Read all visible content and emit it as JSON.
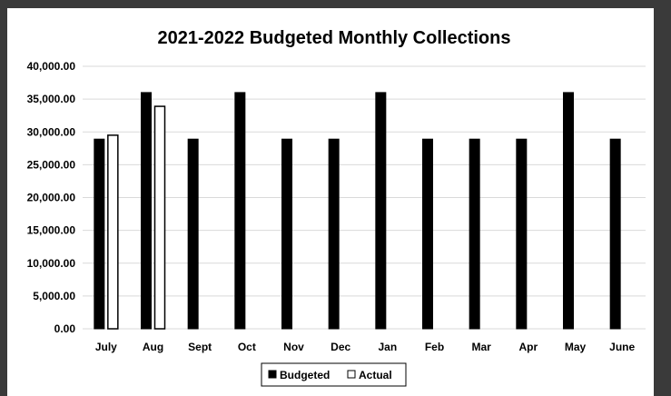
{
  "chart_data": {
    "type": "bar",
    "title": "2021-2022 Budgeted Monthly Collections",
    "xlabel": "",
    "ylabel": "",
    "categories": [
      "July",
      "Aug",
      "Sept",
      "Oct",
      "Nov",
      "Dec",
      "Jan",
      "Feb",
      "Mar",
      "Apr",
      "May",
      "June"
    ],
    "series": [
      {
        "name": "Budgeted",
        "color": "#000000",
        "values": [
          28900,
          36000,
          28900,
          36000,
          28900,
          28900,
          36000,
          28900,
          28900,
          28900,
          36000,
          28900
        ]
      },
      {
        "name": "Actual",
        "color": "#ffffff",
        "values": [
          29500,
          33900,
          null,
          null,
          null,
          null,
          null,
          null,
          null,
          null,
          null,
          null
        ]
      }
    ],
    "ylim": [
      0,
      40000
    ],
    "yticks": [
      0,
      5000,
      10000,
      15000,
      20000,
      25000,
      30000,
      35000,
      40000
    ],
    "ytick_labels": [
      "0.00",
      "5,000.00",
      "10,000.00",
      "15,000.00",
      "20,000.00",
      "25,000.00",
      "30,000.00",
      "35,000.00",
      "40,000.00"
    ],
    "grid": true,
    "legend_position": "bottom"
  }
}
